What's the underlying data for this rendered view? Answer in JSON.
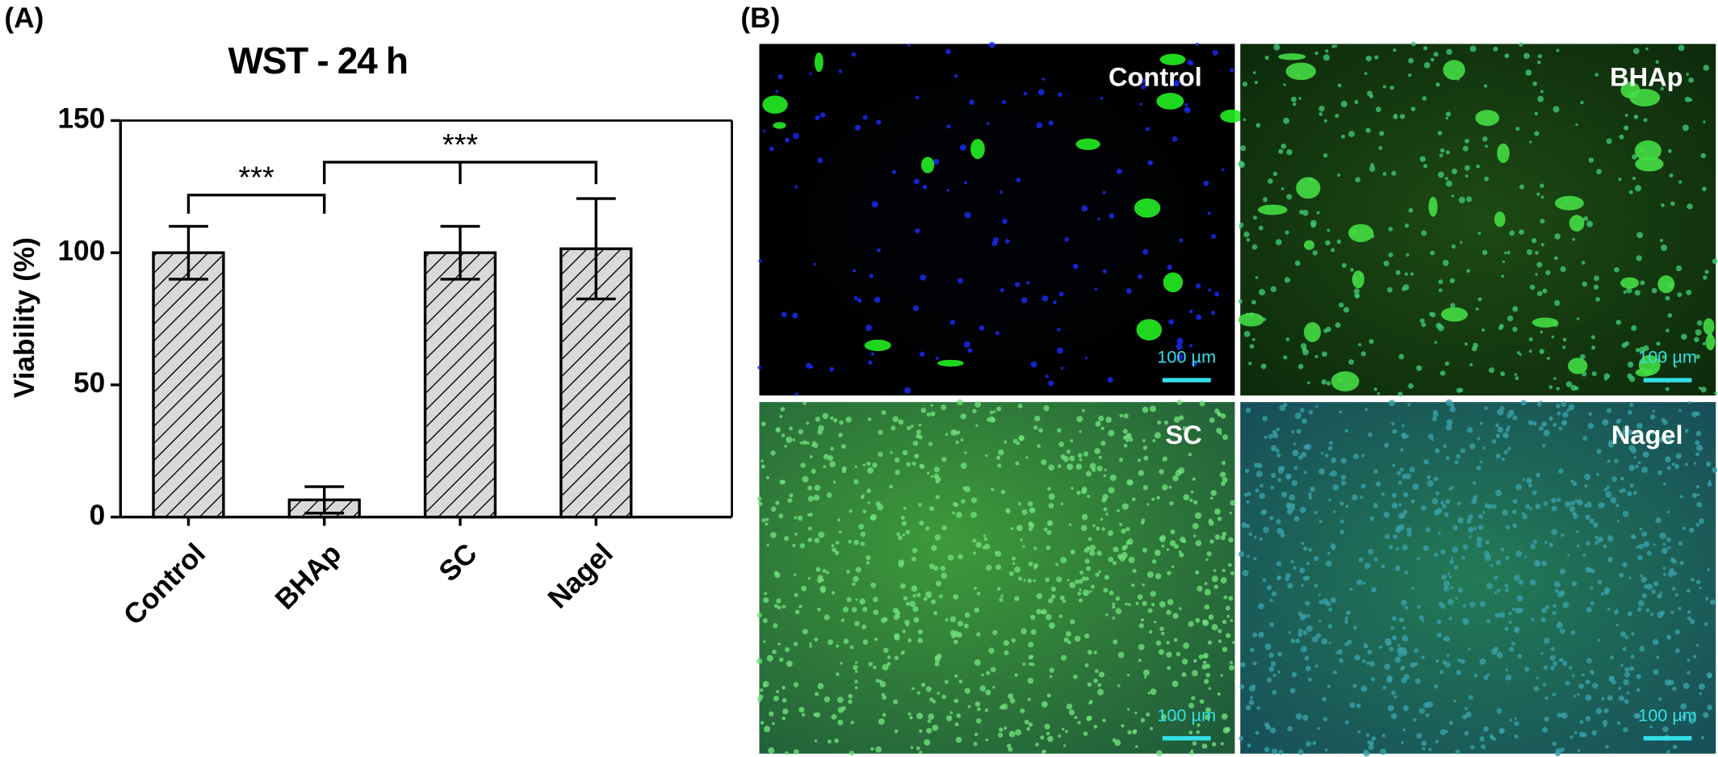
{
  "chart_data": {
    "type": "bar",
    "title": "WST - 24 h",
    "ylabel": "Viability (%)",
    "categories": [
      "Control",
      "BHAp",
      "SC",
      "Nagel"
    ],
    "values": [
      100,
      6.5,
      100,
      101.5
    ],
    "errors": [
      10,
      5,
      10,
      19
    ],
    "color": "#d9d9d9",
    "ylim": [
      0,
      150
    ],
    "yticks": [
      0,
      50,
      100,
      150
    ],
    "annotations": [
      "***",
      "***"
    ]
  },
  "panel_labels": [
    "(A)",
    "(B)"
  ],
  "micrographs": [
    {
      "label": "Control",
      "scale_bar": "100 µm"
    },
    {
      "label": "BHAp",
      "scale_bar": "100 µm"
    },
    {
      "label": "SC",
      "scale_bar": "100 µm"
    },
    {
      "label": "Nagel",
      "scale_bar": "100 µm"
    }
  ]
}
